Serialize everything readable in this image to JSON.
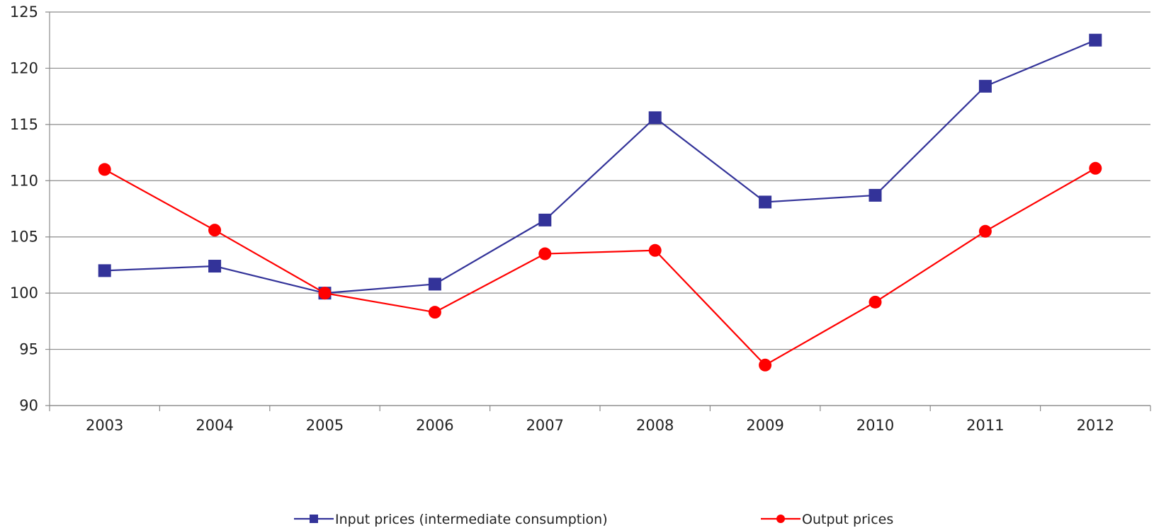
{
  "chart_data": {
    "type": "line",
    "title": "",
    "xlabel": "",
    "ylabel": "",
    "categories": [
      "2003",
      "2004",
      "2005",
      "2006",
      "2007",
      "2008",
      "2009",
      "2010",
      "2011",
      "2012"
    ],
    "ylim": [
      90,
      125
    ],
    "yticks": [
      90,
      95,
      100,
      105,
      110,
      115,
      120,
      125
    ],
    "grid": true,
    "legend_position": "bottom",
    "series": [
      {
        "name": "Input prices (intermediate consumption)",
        "color": "#333399",
        "marker": "square",
        "values": [
          102.0,
          102.4,
          100.0,
          100.8,
          106.5,
          115.6,
          108.1,
          108.7,
          118.4,
          122.5
        ]
      },
      {
        "name": "Output prices",
        "color": "#ff0000",
        "marker": "circle",
        "values": [
          111.0,
          105.6,
          100.0,
          98.3,
          103.5,
          103.8,
          93.6,
          99.2,
          105.5,
          111.1
        ]
      }
    ]
  }
}
